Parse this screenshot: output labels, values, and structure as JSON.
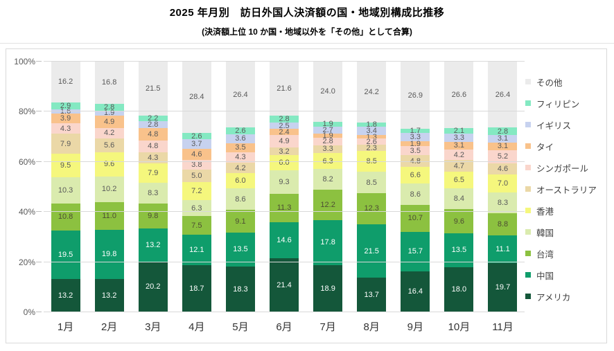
{
  "chart_data": {
    "type": "bar",
    "stacked": true,
    "percent": true,
    "title": "2025 年月別　訪日外国人決済額の国・地域別構成比推移",
    "subtitle": "(決済額上位 10 か国・地域以外を「その他」として合算)",
    "categories": [
      "1月",
      "2月",
      "3月",
      "4月",
      "5月",
      "6月",
      "7月",
      "8月",
      "9月",
      "10月",
      "11月"
    ],
    "y_ticks": [
      "0%",
      "20%",
      "40%",
      "60%",
      "80%",
      "100%"
    ],
    "ylim": [
      0,
      100
    ],
    "grid": true,
    "legend_position": "right",
    "colors": {
      "gridline": "#d9d9d9",
      "axis_text": "#595959",
      "category_text": "#333333",
      "label_on_light": "#595959",
      "label_on_dark": "#ffffff"
    },
    "series": [
      {
        "name": "アメリカ",
        "color": "#14573a",
        "label_color": "#ffffff",
        "values": [
          13.2,
          13.2,
          20.2,
          18.7,
          18.3,
          21.4,
          18.9,
          13.7,
          16.4,
          18.0,
          19.7
        ]
      },
      {
        "name": "中国",
        "color": "#0f9d6b",
        "label_color": "#ffffff",
        "values": [
          19.5,
          19.8,
          13.2,
          12.1,
          13.5,
          14.6,
          17.8,
          21.5,
          15.7,
          13.5,
          11.1
        ]
      },
      {
        "name": "台湾",
        "color": "#8cc140",
        "label_color": "#4d4d33",
        "values": [
          10.8,
          11.0,
          9.8,
          7.5,
          9.1,
          11.3,
          12.2,
          12.3,
          10.7,
          9.6,
          8.8
        ]
      },
      {
        "name": "韓国",
        "color": "#daebae",
        "label_color": "#595959",
        "values": [
          10.3,
          10.2,
          8.3,
          6.3,
          8.6,
          9.3,
          8.2,
          8.5,
          8.6,
          8.4,
          8.3
        ]
      },
      {
        "name": "香港",
        "color": "#f5f77d",
        "label_color": "#595959",
        "values": [
          9.5,
          9.6,
          7.9,
          7.2,
          6.0,
          6.0,
          6.3,
          8.5,
          6.6,
          6.5,
          7.0
        ]
      },
      {
        "name": "オーストラリア",
        "color": "#ebd8a7",
        "label_color": "#595959",
        "values": [
          7.9,
          5.6,
          4.3,
          5.0,
          4.2,
          3.2,
          3.3,
          2.3,
          4.8,
          4.7,
          4.6
        ]
      },
      {
        "name": "シンガポール",
        "color": "#fad6cc",
        "label_color": "#595959",
        "values": [
          4.3,
          4.2,
          4.8,
          3.8,
          4.3,
          4.9,
          2.8,
          2.6,
          3.5,
          4.2,
          5.2
        ]
      },
      {
        "name": "タイ",
        "color": "#f9c28b",
        "label_color": "#595959",
        "values": [
          3.9,
          4.9,
          4.8,
          4.6,
          3.5,
          2.4,
          1.9,
          1.3,
          1.9,
          3.1,
          3.1
        ]
      },
      {
        "name": "イギリス",
        "color": "#c7d2ef",
        "label_color": "#595959",
        "values": [
          1.6,
          1.9,
          2.8,
          3.7,
          3.6,
          2.5,
          2.7,
          3.4,
          3.3,
          3.3,
          3.1
        ]
      },
      {
        "name": "フィリピン",
        "color": "#84e9c2",
        "label_color": "#595959",
        "values": [
          2.9,
          2.8,
          2.2,
          2.6,
          2.6,
          2.8,
          1.9,
          1.8,
          1.7,
          2.1,
          2.8
        ]
      },
      {
        "name": "その他",
        "color": "#ebebeb",
        "label_color": "#595959",
        "values": [
          16.2,
          16.8,
          21.5,
          28.4,
          26.4,
          21.6,
          24.0,
          24.2,
          26.9,
          26.6,
          26.4
        ]
      }
    ]
  }
}
